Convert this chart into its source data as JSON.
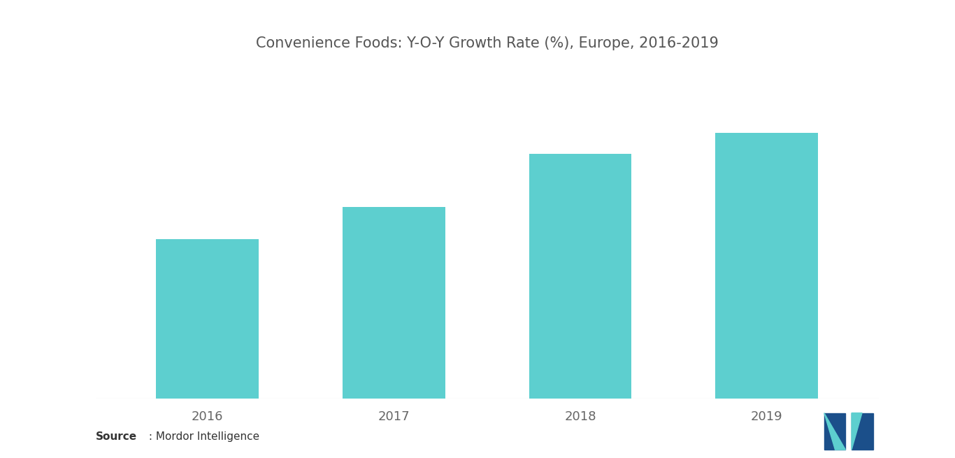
{
  "title": "Convenience Foods: Y-O-Y Growth Rate (%), Europe, 2016-2019",
  "categories": [
    "2016",
    "2017",
    "2018",
    "2019"
  ],
  "values": [
    3.0,
    3.6,
    4.6,
    5.0
  ],
  "bar_color": "#5DCFCF",
  "background_color": "#ffffff",
  "title_fontsize": 15,
  "tick_fontsize": 13,
  "source_text": "Source",
  "source_detail": " : Mordor Intelligence",
  "ylim_min": 0,
  "ylim_max": 6.2,
  "bar_width": 0.55,
  "x_positions": [
    0,
    1,
    2,
    3
  ]
}
